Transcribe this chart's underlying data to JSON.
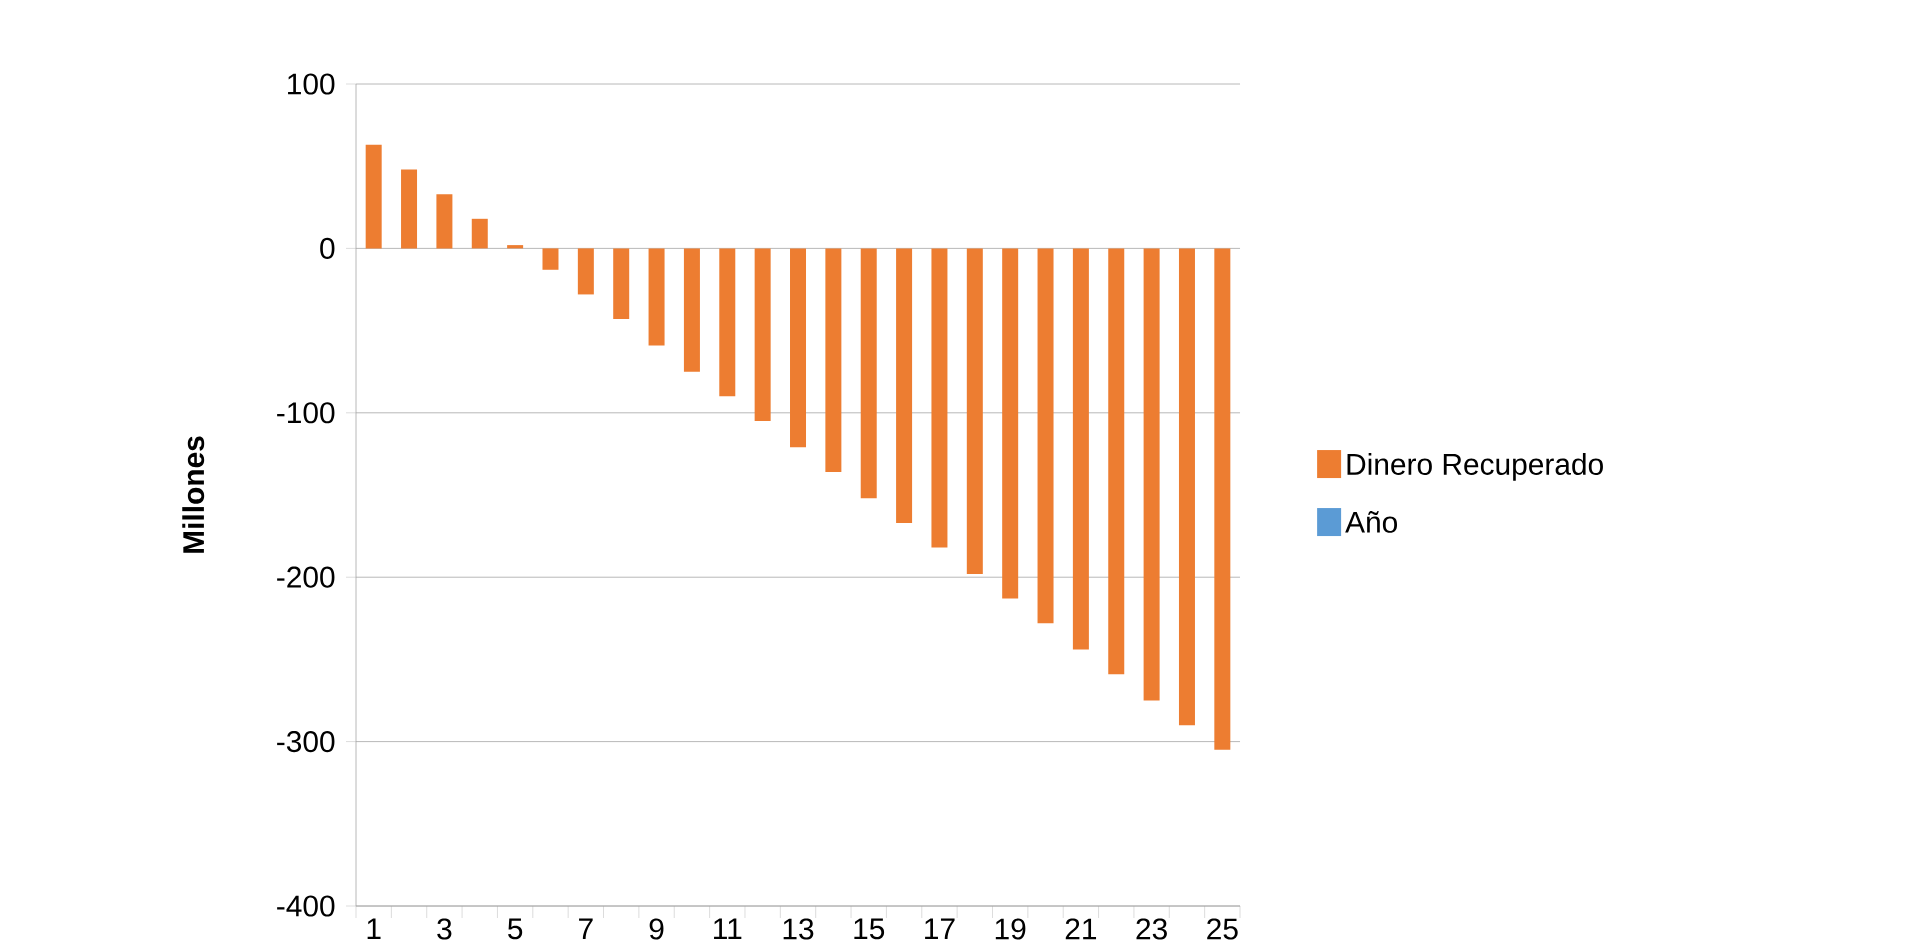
{
  "chart_data": {
    "type": "bar",
    "ylabel": "Millones",
    "categories": [
      "1",
      null,
      "3",
      null,
      "5",
      null,
      "7",
      null,
      "9",
      null,
      "11",
      null,
      "13",
      null,
      "15",
      null,
      "17",
      null,
      "19",
      null,
      "21",
      null,
      "23",
      null,
      "25"
    ],
    "series": [
      {
        "name": "Dinero Recuperado",
        "color": "#ed7d31",
        "values": [
          63,
          48,
          33,
          18,
          2,
          -13,
          -28,
          -43,
          -59,
          -75,
          -90,
          -105,
          -121,
          -136,
          -152,
          -167,
          -182,
          -198,
          -213,
          -228,
          -244,
          -259,
          -275,
          -290,
          -305
        ]
      },
      {
        "name": "Año",
        "color": "#5b9bd5",
        "values": [
          null,
          null,
          null,
          null,
          null,
          null,
          null,
          null,
          null,
          null,
          null,
          null,
          null,
          null,
          null,
          null,
          null,
          null,
          null,
          null,
          null,
          null,
          null,
          null,
          null
        ]
      }
    ],
    "ylim": [
      -400,
      100
    ],
    "yticks": [
      100,
      0,
      -100,
      -200,
      -300,
      -400
    ],
    "grid": "y",
    "legend": "right"
  }
}
